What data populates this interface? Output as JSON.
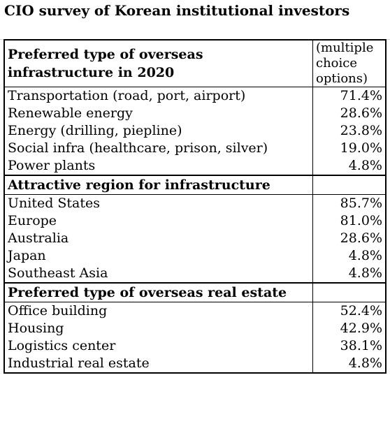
{
  "title": "CIO survey of Korean institutional investors",
  "sections": [
    {
      "header_line1": "Preferred type of overseas",
      "header_line2": "infrastructure in 2020",
      "note_line1": "(multiple",
      "note_line2": "choice",
      "note_line3": "options)",
      "rows": [
        {
          "label": "Transportation (road, port, airport)",
          "value": "71.4%"
        },
        {
          "label": "Renewable energy",
          "value": "28.6%"
        },
        {
          "label": "Energy (drilling, piepline)",
          "value": "23.8%"
        },
        {
          "label": "Social infra (healthcare, prison, silver)",
          "value": "19.0%"
        },
        {
          "label": "Power plants",
          "value": "4.8%"
        }
      ]
    },
    {
      "header": "Attractive region for infrastructure",
      "rows": [
        {
          "label": "United States",
          "value": "85.7%"
        },
        {
          "label": "Europe",
          "value": "81.0%"
        },
        {
          "label": "Australia",
          "value": "28.6%"
        },
        {
          "label": "Japan",
          "value": "4.8%"
        },
        {
          "label": "Southeast Asia",
          "value": "4.8%"
        }
      ]
    },
    {
      "header": "Preferred type of overseas real estate",
      "rows": [
        {
          "label": "Office building",
          "value": "52.4%"
        },
        {
          "label": "Housing",
          "value": "42.9%"
        },
        {
          "label": "Logistics center",
          "value": "38.1%"
        },
        {
          "label": "Industrial real estate",
          "value": "4.8%"
        }
      ]
    }
  ]
}
